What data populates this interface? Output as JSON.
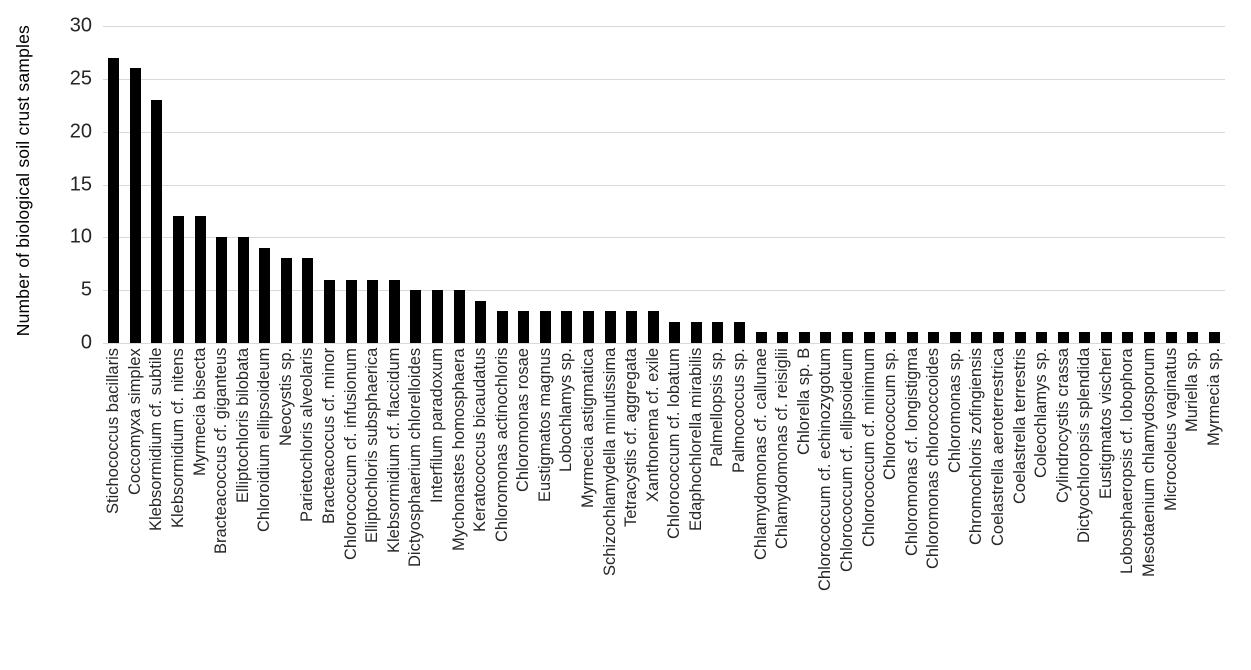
{
  "chart_data": {
    "type": "bar",
    "title": "",
    "xlabel": "",
    "ylabel": "Number of biological soil crust samples",
    "ylim": [
      0,
      30
    ],
    "yticks": [
      0,
      5,
      10,
      15,
      20,
      25,
      30
    ],
    "grid": "horizontal",
    "legend": "none",
    "bar_color": "#000000",
    "gridline_color": "#d9d9d9",
    "axis_text_color": "#262626",
    "categories": [
      "Stichococcus bacillaris",
      "Coccomyxa simplex",
      "Klebsormidium cf. subtile",
      "Klebsormidium cf. nitens",
      "Myrmecia bisecta",
      "Bracteacoccus cf. giganteus",
      "Elliptochloris bilobata",
      "Chloroidium ellipsoideum",
      "Neocystis sp.",
      "Parietochloris alveolaris",
      "Bracteacoccus cf. minor",
      "Chlorococcum cf. infusionum",
      "Elliptochloris subsphaerica",
      "Klebsormidium cf. flaccidum",
      "Dictyosphaerium chlorelloides",
      "Interfilum paradoxum",
      "Mychonastes homosphaera",
      "Keratococcus bicaudatus",
      "Chloromonas actinochloris",
      "Chloromonas rosae",
      "Eustigmatos magnus",
      "Lobochlamys sp.",
      "Myrmecia astigmatica",
      "Schizochlamydella minutissima",
      "Tetracystis cf. aggregata",
      "Xanthonema cf. exile",
      "Chlorococcum cf. lobatum",
      "Edaphochlorella mirabilis",
      "Palmellopsis sp.",
      "Palmococcus sp.",
      "Chlamydomonas cf. callunae",
      "Chlamydomonas cf. reisiglii",
      "Chlorella sp. B",
      "Chlorococcum cf. echinozygotum",
      "Chlorococcum cf. ellipsoideum",
      "Chlorococcum cf. minimum",
      "Chlorococcum sp.",
      "Chloromonas cf. longistigma",
      "Chloromonas chlorococcoides",
      "Chloromonas sp.",
      "Chromochloris zofingiensis",
      "Coelastrella aeroterrestrica",
      "Coelastrella terrestris",
      "Coleochlamys sp.",
      "Cylindrocystis crassa",
      "Dictyochloropsis splendida",
      "Eustigmatos vischeri",
      "Lobosphaeropsis cf. lobophora",
      "Mesotaenium chlamydosporum",
      "Microcoleus vaginatus",
      "Muriella sp.",
      "Myrmecia sp."
    ],
    "values": [
      27,
      26,
      23,
      12,
      12,
      10,
      10,
      9,
      8,
      8,
      6,
      6,
      6,
      6,
      5,
      5,
      5,
      4,
      3,
      3,
      3,
      3,
      3,
      3,
      3,
      3,
      2,
      2,
      2,
      2,
      1,
      1,
      1,
      1,
      1,
      1,
      1,
      1,
      1,
      1,
      1,
      1,
      1,
      1,
      1,
      1,
      1,
      1,
      1,
      1,
      1,
      1
    ]
  }
}
